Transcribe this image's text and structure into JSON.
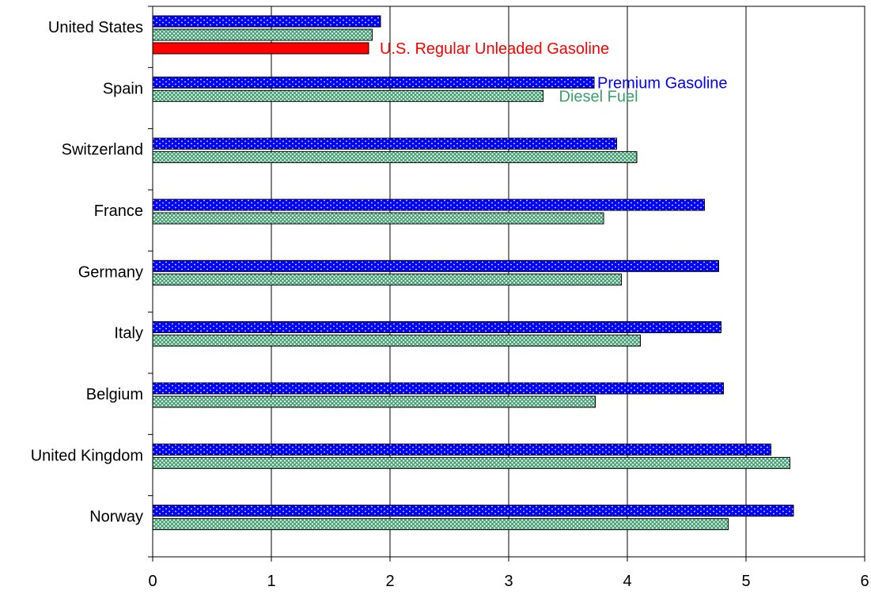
{
  "chart_data": {
    "type": "bar",
    "orientation": "horizontal",
    "title": "",
    "xlabel": "",
    "ylabel": "",
    "xlim": [
      0,
      6
    ],
    "x_ticks": [
      0,
      1,
      2,
      3,
      4,
      5,
      6
    ],
    "grid": "vertical",
    "legend": "none",
    "categories": [
      "United States",
      "Spain",
      "Switzerland",
      "France",
      "Germany",
      "Italy",
      "Belgium",
      "United Kingdom",
      "Norway"
    ],
    "series": [
      {
        "name": "Premium Gasoline",
        "color": "#0000ff",
        "pattern": "dots",
        "values": [
          1.92,
          3.72,
          3.91,
          4.65,
          4.77,
          4.79,
          4.81,
          5.21,
          5.4
        ]
      },
      {
        "name": "Diesel Fuel",
        "color": "#3c9f6e",
        "pattern": "crosshatch",
        "values": [
          1.85,
          3.29,
          4.08,
          3.8,
          3.95,
          4.11,
          3.73,
          5.37,
          4.85
        ]
      },
      {
        "name": "U.S. Regular Unleaded Gasoline",
        "color": "#ff0000",
        "pattern": "solid",
        "values": [
          1.82,
          null,
          null,
          null,
          null,
          null,
          null,
          null,
          null
        ]
      }
    ],
    "annotations": [
      {
        "text": "U.S. Regular Unleaded Gasoline",
        "color": "#ff0000",
        "category": "United States",
        "series": "U.S. Regular Unleaded Gasoline"
      },
      {
        "text": "Premium Gasoline",
        "color": "#0000ff",
        "category": "Spain",
        "series": "Premium Gasoline"
      },
      {
        "text": "Diesel Fuel",
        "color": "#3c9f6e",
        "category": "Spain",
        "series": "Diesel Fuel"
      }
    ]
  }
}
